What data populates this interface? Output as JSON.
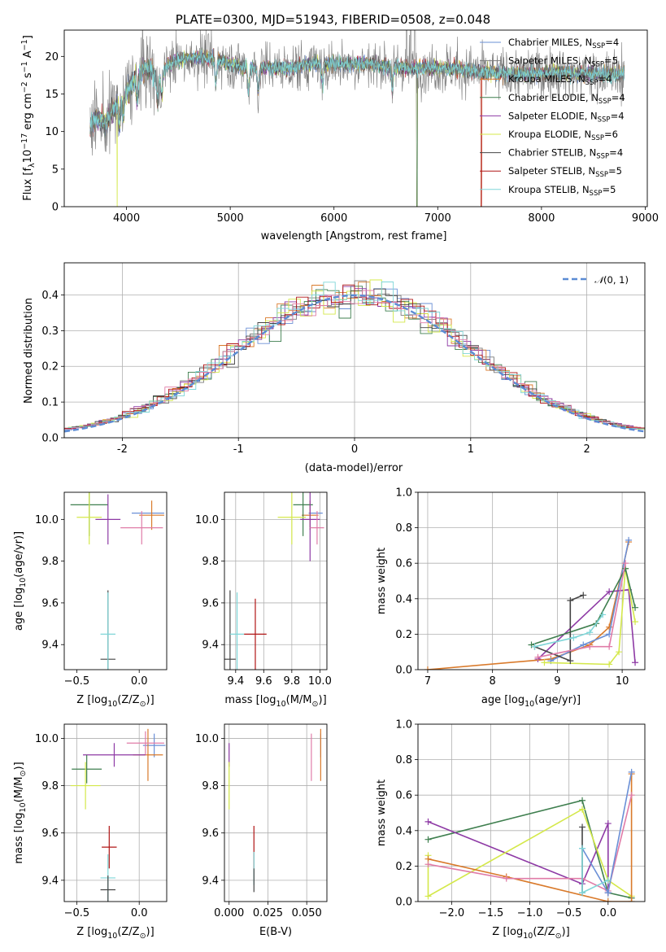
{
  "palette": {
    "Chabrier MILES": "#6a8fd6",
    "Salpeter MILES": "#7b7b7b",
    "Kroupa MILES": "#d97a2b",
    "Chabrier ELODIE": "#3f7f4f",
    "Salpeter ELODIE": "#8e3aa5",
    "Kroupa ELODIE": "#d4e84a",
    "Chabrier STELIB": "#444444",
    "Salpeter STELIB": "#b01515",
    "Kroupa STELIB": "#7fd6d8",
    "Pink": "#e07ca8",
    "Normal": "#5b8bd4"
  },
  "chart_data": [
    {
      "id": "spectrum",
      "type": "line",
      "title": "PLATE=0300, MJD=51943, FIBERID=0508, z=0.048",
      "xlabel": "wavelength [Angstrom, rest frame]",
      "ylabel_main": "Flux [f",
      "ylabel_sub": "λ",
      "ylabel_mid": "10",
      "ylabel_exp1": "−17",
      "ylabel_rest": " erg cm",
      "ylabel_exp2": "−2",
      "ylabel_rest2": " s",
      "ylabel_exp3": "−1",
      "ylabel_rest3": " A",
      "ylabel_exp4": "−1",
      "ylabel_end": "]",
      "xlim": [
        3400,
        9020
      ],
      "ylim": [
        0,
        23.5
      ],
      "xticks": [
        4000,
        5000,
        6000,
        7000,
        8000,
        9000
      ],
      "yticks": [
        0,
        5,
        10,
        15,
        20
      ],
      "legend_location": "right",
      "legend": [
        {
          "name": "Chabrier MILES",
          "nssp": "4"
        },
        {
          "name": "Salpeter MILES",
          "nssp": "5"
        },
        {
          "name": "Kroupa MILES",
          "nssp": "4"
        },
        {
          "name": "Chabrier ELODIE",
          "nssp": "4"
        },
        {
          "name": "Salpeter ELODIE",
          "nssp": "4"
        },
        {
          "name": "Kroupa ELODIE",
          "nssp": "6"
        },
        {
          "name": "Chabrier STELIB",
          "nssp": "4"
        },
        {
          "name": "Salpeter STELIB",
          "nssp": "5"
        },
        {
          "name": "Kroupa STELIB",
          "nssp": "5"
        }
      ],
      "legend_prefix": "N",
      "legend_sub": "SSP",
      "legend_eq": "=",
      "continuum": [
        [
          3650,
          10.5
        ],
        [
          3700,
          12
        ],
        [
          3800,
          11
        ],
        [
          3900,
          13.5
        ],
        [
          4000,
          15.5
        ],
        [
          4100,
          17.5
        ],
        [
          4200,
          18.5
        ],
        [
          4300,
          17
        ],
        [
          4400,
          19
        ],
        [
          4500,
          19.5
        ],
        [
          4700,
          20
        ],
        [
          4900,
          19.5
        ],
        [
          5000,
          19
        ],
        [
          5200,
          18.5
        ],
        [
          5400,
          18.5
        ],
        [
          5600,
          18.5
        ],
        [
          5800,
          19
        ],
        [
          6000,
          19
        ],
        [
          6200,
          19
        ],
        [
          6400,
          19
        ],
        [
          6600,
          18.5
        ],
        [
          6800,
          18.5
        ],
        [
          7000,
          18.5
        ],
        [
          7200,
          18.3
        ],
        [
          7400,
          18
        ],
        [
          7600,
          17.7
        ],
        [
          7800,
          17.7
        ],
        [
          8000,
          17.8
        ],
        [
          8200,
          17.9
        ],
        [
          8400,
          17.7
        ],
        [
          8600,
          17.6
        ],
        [
          8800,
          17.6
        ]
      ],
      "drops": [
        {
          "series": "Kroupa ELODIE",
          "x": 3910,
          "xmax": 6800
        },
        {
          "series": "Chabrier ELODIE",
          "x": 6800,
          "xmax": 6800
        },
        {
          "series": "Kroupa MILES",
          "x": 6800,
          "xmax": 6800
        },
        {
          "series": "Kroupa MILES",
          "x": 7420,
          "xmax": 7420
        },
        {
          "series": "Salpeter STELIB",
          "x": 7420,
          "xmax": 7420
        }
      ],
      "spikes": [
        6700,
        6740,
        6780
      ]
    },
    {
      "id": "residuals",
      "type": "line",
      "xlabel": "(data-model)/error",
      "ylabel": "Normed distribution",
      "xlim": [
        -2.5,
        2.5
      ],
      "ylim": [
        0,
        0.49
      ],
      "xticks": [
        -2,
        -1,
        0,
        1,
        2
      ],
      "yticks": [
        0,
        0.1,
        0.2,
        0.3,
        0.4
      ],
      "ytick_labels": [
        "0.0",
        "0.1",
        "0.2",
        "0.3",
        "0.4"
      ],
      "grid": true,
      "legend_location": "top-right",
      "normal_label": "(0, 1)",
      "normal_symbol": "𝒩",
      "bin_width": 0.1
    },
    {
      "id": "age-vs-Z",
      "type": "scatter",
      "xlabel_pre": "Z [log",
      "xlabel_sub": "10",
      "xlabel_mid": "(Z/Z",
      "xlabel_sub2": "⊙",
      "xlabel_end": ")]",
      "ylabel_pre": "age  [log",
      "ylabel_sub": "10",
      "ylabel_end": "(age/yr)]",
      "xlim": [
        -0.6,
        0.22
      ],
      "ylim": [
        9.28,
        10.13
      ],
      "xticks": [
        -0.5,
        0.0
      ],
      "xtick_labels": [
        "−0.5",
        "0.0"
      ],
      "yticks": [
        9.4,
        9.6,
        9.8,
        10.0
      ],
      "ytick_labels": [
        "9.4",
        "9.6",
        "9.8",
        "10.0"
      ],
      "points": [
        {
          "series": "Chabrier MILES",
          "x": 0.07,
          "y": 10.03,
          "xerr": 0.13,
          "yerr": 0
        },
        {
          "series": "Kroupa MILES",
          "x": 0.1,
          "y": 10.02,
          "xerr": 0.1,
          "yerr": 0.07
        },
        {
          "series": "Chabrier ELODIE",
          "x": -0.4,
          "y": 10.07,
          "xerr": 0.15,
          "yerr": 0.15
        },
        {
          "series": "Salpeter ELODIE",
          "x": -0.25,
          "y": 10.0,
          "xerr": 0.1,
          "yerr": 0.12
        },
        {
          "series": "Kroupa ELODIE",
          "x": -0.4,
          "y": 10.01,
          "xerr": 0.1,
          "yerr": 0.13
        },
        {
          "series": "Pink",
          "x": 0.02,
          "y": 9.96,
          "xerr": 0.17,
          "yerr": 0.08
        },
        {
          "series": "Chabrier STELIB",
          "x": -0.25,
          "y": 9.33,
          "xerr": 0.06,
          "yerr": 0.33
        },
        {
          "series": "Kroupa STELIB",
          "x": -0.25,
          "y": 9.45,
          "xerr": 0.06,
          "yerr": 0.2
        }
      ]
    },
    {
      "id": "age-vs-mass",
      "type": "scatter",
      "xlabel_pre": "mass [log",
      "xlabel_sub": "10",
      "xlabel_mid": "(M/M",
      "xlabel_sub2": "⊙",
      "xlabel_end": ")]",
      "xlim": [
        9.32,
        10.05
      ],
      "ylim": [
        9.28,
        10.13
      ],
      "xticks": [
        9.4,
        9.6,
        9.8,
        10.0
      ],
      "xtick_labels": [
        "9.4",
        "9.6",
        "9.8",
        "10.0"
      ],
      "yticks": [
        9.4,
        9.6,
        9.8,
        10.0
      ],
      "ytick_labels": [
        "9.4",
        "9.6",
        "9.8",
        "10.0"
      ],
      "points": [
        {
          "series": "Chabrier MILES",
          "x": 9.97,
          "y": 10.03,
          "xerr": 0.05,
          "yerr": 0
        },
        {
          "series": "Kroupa MILES",
          "x": 9.93,
          "y": 10.02,
          "xerr": 0.06,
          "yerr": 0.07
        },
        {
          "series": "Chabrier ELODIE",
          "x": 9.88,
          "y": 10.07,
          "xerr": 0.07,
          "yerr": 0.15
        },
        {
          "series": "Salpeter ELODIE",
          "x": 9.93,
          "y": 10.0,
          "xerr": 0.07,
          "yerr": 0.2
        },
        {
          "series": "Kroupa ELODIE",
          "x": 9.8,
          "y": 10.01,
          "xerr": 0.1,
          "yerr": 0.13
        },
        {
          "series": "Pink",
          "x": 9.98,
          "y": 9.96,
          "xerr": 0.05,
          "yerr": 0.08
        },
        {
          "series": "Chabrier STELIB",
          "x": 9.36,
          "y": 9.33,
          "xerr": 0.04,
          "yerr": 0.33
        },
        {
          "series": "Kroupa STELIB",
          "x": 9.41,
          "y": 9.45,
          "xerr": 0.05,
          "yerr": 0.2
        },
        {
          "series": "Salpeter STELIB",
          "x": 9.54,
          "y": 9.45,
          "xerr": 0.08,
          "yerr": 0.17
        }
      ]
    },
    {
      "id": "weight-vs-age",
      "type": "line",
      "xlabel_pre": "age  [log",
      "xlabel_sub": "10",
      "xlabel_end": "(age/yr)]",
      "ylabel": "mass weight",
      "xlim": [
        6.85,
        10.35
      ],
      "ylim": [
        0,
        1.0
      ],
      "xticks": [
        7,
        8,
        9,
        10
      ],
      "yticks": [
        0,
        0.2,
        0.4,
        0.6,
        0.8,
        1.0
      ],
      "ytick_labels": [
        "0.0",
        "0.2",
        "0.4",
        "0.6",
        "0.8",
        "1.0"
      ],
      "grid": true,
      "series": [
        {
          "series": "Kroupa MILES",
          "points": [
            [
              7,
              0
            ],
            [
              8.9,
              0.06
            ],
            [
              9.5,
              0.14
            ],
            [
              9.8,
              0.24
            ],
            [
              10.1,
              0.72
            ]
          ]
        },
        {
          "series": "Chabrier MILES",
          "points": [
            [
              8.9,
              0.05
            ],
            [
              9.4,
              0.14
            ],
            [
              9.8,
              0.2
            ],
            [
              10.1,
              0.73
            ]
          ]
        },
        {
          "series": "Salpeter ELODIE",
          "points": [
            [
              8.7,
              0.06
            ],
            [
              9.8,
              0.44
            ],
            [
              10.1,
              0.45
            ],
            [
              10.2,
              0.04
            ]
          ]
        },
        {
          "series": "Kroupa ELODIE",
          "points": [
            [
              8.8,
              0.04
            ],
            [
              9.8,
              0.03
            ],
            [
              9.95,
              0.1
            ],
            [
              10.05,
              0.57
            ],
            [
              10.2,
              0.27
            ]
          ]
        },
        {
          "series": "Chabrier ELODIE",
          "points": [
            [
              8.6,
              0.14
            ],
            [
              9.6,
              0.26
            ],
            [
              10.05,
              0.57
            ],
            [
              10.2,
              0.35
            ]
          ]
        },
        {
          "series": "Chabrier STELIB",
          "points": [
            [
              8.65,
              0.13
            ],
            [
              9.2,
              0.05
            ],
            [
              9.2,
              0.39
            ],
            [
              9.4,
              0.42
            ]
          ]
        },
        {
          "series": "Kroupa STELIB",
          "points": [
            [
              8.65,
              0.13
            ],
            [
              9.25,
              0.18
            ],
            [
              9.5,
              0.21
            ],
            [
              9.7,
              0.31
            ]
          ]
        },
        {
          "series": "Pink",
          "points": [
            [
              8.7,
              0.07
            ],
            [
              9.5,
              0.13
            ],
            [
              9.8,
              0.13
            ],
            [
              10.05,
              0.6
            ]
          ]
        }
      ]
    },
    {
      "id": "mass-vs-Z",
      "type": "scatter",
      "xlabel_pre": "Z [log",
      "xlabel_sub": "10",
      "xlabel_mid": "(Z/Z",
      "xlabel_sub2": "⊙",
      "xlabel_end": ")]",
      "ylabel_pre": "mass [log",
      "ylabel_sub": "10",
      "ylabel_mid": "(M/M",
      "ylabel_sub2": "⊙",
      "ylabel_end": ")]",
      "xlim": [
        -0.6,
        0.22
      ],
      "ylim": [
        9.31,
        10.06
      ],
      "xticks": [
        -0.5,
        0.0
      ],
      "xtick_labels": [
        "−0.5",
        "0.0"
      ],
      "yticks": [
        9.4,
        9.6,
        9.8,
        10.0
      ],
      "ytick_labels": [
        "9.4",
        "9.6",
        "9.8",
        "10.0"
      ],
      "points": [
        {
          "series": "Chabrier MILES",
          "x": 0.12,
          "y": 9.97,
          "xerr": 0.09,
          "yerr": 0.05
        },
        {
          "series": "Kroupa MILES",
          "x": 0.07,
          "y": 9.93,
          "xerr": 0.12,
          "yerr": 0.11
        },
        {
          "series": "Pink",
          "x": 0.05,
          "y": 9.98,
          "xerr": 0.15,
          "yerr": 0.05
        },
        {
          "series": "Salpeter ELODIE",
          "x": -0.2,
          "y": 9.93,
          "xerr": 0.25,
          "yerr": 0.05
        },
        {
          "series": "Chabrier ELODIE",
          "x": -0.42,
          "y": 9.87,
          "xerr": 0.12,
          "yerr": 0.06
        },
        {
          "series": "Kroupa ELODIE",
          "x": -0.43,
          "y": 9.8,
          "xerr": 0.12,
          "yerr": 0.1
        },
        {
          "series": "Salpeter STELIB",
          "x": -0.24,
          "y": 9.54,
          "xerr": 0.06,
          "yerr": 0.09
        },
        {
          "series": "Kroupa STELIB",
          "x": -0.25,
          "y": 9.41,
          "xerr": 0.06,
          "yerr": 0.1
        },
        {
          "series": "Chabrier STELIB",
          "x": -0.25,
          "y": 9.36,
          "xerr": 0.06,
          "yerr": 0.06
        }
      ]
    },
    {
      "id": "mass-vs-EBV",
      "type": "scatter",
      "xlabel": "E(B-V)",
      "xlim": [
        -0.003,
        0.063
      ],
      "ylim": [
        9.31,
        10.06
      ],
      "xticks": [
        0.0,
        0.025,
        0.05
      ],
      "xtick_labels": [
        "0.000",
        "0.025",
        "0.050"
      ],
      "yticks": [
        9.4,
        9.6,
        9.8,
        10.0
      ],
      "ytick_labels": [
        "9.4",
        "9.6",
        "9.8",
        "10.0"
      ],
      "grid": true,
      "points": [
        {
          "series": "Salpeter ELODIE",
          "x": 0.0,
          "y": 9.93,
          "xerr": 0,
          "yerr": 0.05
        },
        {
          "series": "Kroupa ELODIE",
          "x": 0.0,
          "y": 9.8,
          "xerr": 0,
          "yerr": 0.1
        },
        {
          "series": "Pink",
          "x": 0.053,
          "y": 9.92,
          "xerr": 0,
          "yerr": 0.1
        },
        {
          "series": "Chabrier MILES",
          "x": 0.059,
          "y": 9.97,
          "xerr": 0,
          "yerr": 0.05
        },
        {
          "series": "Kroupa MILES",
          "x": 0.059,
          "y": 9.93,
          "xerr": 0,
          "yerr": 0.11
        },
        {
          "series": "Salpeter STELIB",
          "x": 0.016,
          "y": 9.54,
          "xerr": 0,
          "yerr": 0.09
        },
        {
          "series": "Kroupa STELIB",
          "x": 0.016,
          "y": 9.45,
          "xerr": 0,
          "yerr": 0.07
        },
        {
          "series": "Chabrier STELIB",
          "x": 0.016,
          "y": 9.4,
          "xerr": 0,
          "yerr": 0.05
        }
      ]
    },
    {
      "id": "weight-vs-Z",
      "type": "line",
      "xlabel_pre": "Z [log",
      "xlabel_sub": "10",
      "xlabel_mid": "(Z/Z",
      "xlabel_sub2": "⊙",
      "xlabel_end": ")]",
      "ylabel": "mass weight",
      "xlim": [
        -2.43,
        0.47
      ],
      "ylim": [
        0,
        1.0
      ],
      "xticks": [
        -2.0,
        -1.5,
        -1.0,
        -0.5,
        0.0
      ],
      "xtick_labels": [
        "−2.0",
        "−1.5",
        "−1.0",
        "−0.5",
        "0.0"
      ],
      "yticks": [
        0,
        0.2,
        0.4,
        0.6,
        0.8,
        1.0
      ],
      "ytick_labels": [
        "0.0",
        "0.2",
        "0.4",
        "0.6",
        "0.8",
        "1.0"
      ],
      "grid": true,
      "series": [
        {
          "series": "Chabrier ELODIE",
          "points": [
            [
              -2.3,
              0.35
            ],
            [
              -0.33,
              0.57
            ],
            [
              0.0,
              0.05
            ],
            [
              0.3,
              0.02
            ]
          ]
        },
        {
          "series": "Salpeter ELODIE",
          "points": [
            [
              -2.3,
              0.45
            ],
            [
              -0.33,
              0.1
            ],
            [
              0.0,
              0.44
            ],
            [
              0.0,
              0.05
            ]
          ]
        },
        {
          "series": "Kroupa ELODIE",
          "points": [
            [
              -2.3,
              0.26
            ],
            [
              -2.3,
              0.03
            ],
            [
              -0.33,
              0.52
            ],
            [
              0.0,
              0.12
            ],
            [
              0.3,
              0.03
            ]
          ]
        },
        {
          "series": "Kroupa MILES",
          "points": [
            [
              -2.3,
              0.24
            ],
            [
              -1.3,
              0.14
            ],
            [
              0.0,
              0.0
            ],
            [
              0.3,
              0.0
            ],
            [
              0.3,
              0.72
            ]
          ]
        },
        {
          "series": "Pink",
          "points": [
            [
              -2.3,
              0.21
            ],
            [
              -1.3,
              0.13
            ],
            [
              -0.33,
              0.13
            ],
            [
              0.0,
              0.06
            ],
            [
              0.3,
              0.6
            ]
          ]
        },
        {
          "series": "Chabrier MILES",
          "points": [
            [
              -0.33,
              0.3
            ],
            [
              0.0,
              0.05
            ],
            [
              0.3,
              0.73
            ]
          ]
        },
        {
          "series": "Chabrier STELIB",
          "points": [
            [
              -0.33,
              0.42
            ],
            [
              -0.33,
              0.05
            ]
          ]
        },
        {
          "series": "Kroupa STELIB",
          "points": [
            [
              -0.33,
              0.3
            ],
            [
              -0.33,
              0.05
            ],
            [
              0.0,
              0.12
            ]
          ]
        }
      ]
    }
  ]
}
